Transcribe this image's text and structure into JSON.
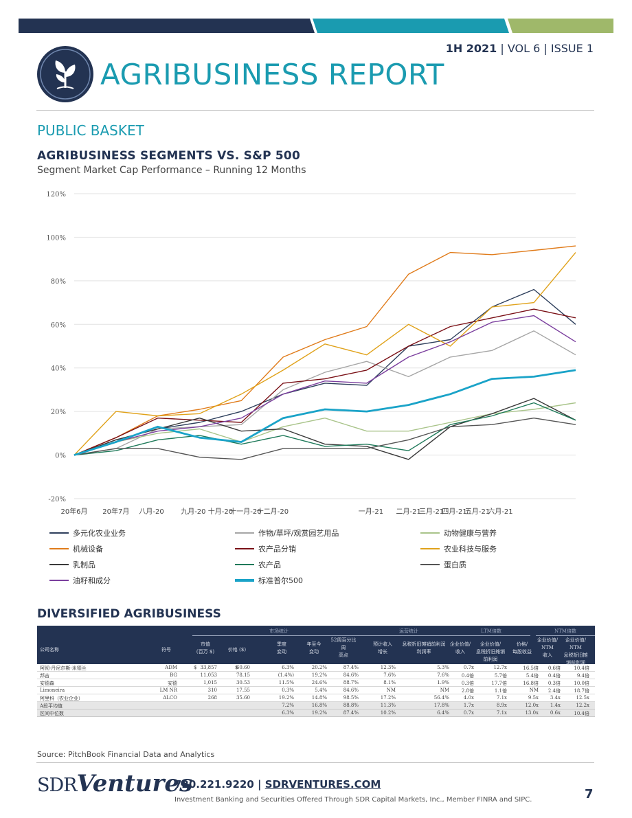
{
  "header": {
    "issue_bold": "1H 2021",
    "issue_rest": " | VOL 6 | ISSUE 1",
    "report_title": "AGRIBUSINESS REPORT"
  },
  "colors": {
    "navy": "#233352",
    "teal": "#1a9bb0",
    "green": "#9fb86a"
  },
  "section_title": "PUBLIC BASKET",
  "chart_data": {
    "type": "line",
    "title": "AGRIBUSINESS SEGMENTS VS. S&P 500",
    "subtitle": "Segment Market Cap Performance – Running 12 Months",
    "ylim": [
      -20,
      120
    ],
    "yticks": [
      "-20%",
      "0%",
      "20%",
      "40%",
      "60%",
      "80%",
      "100%",
      "120%"
    ],
    "ytick_values": [
      -20,
      0,
      20,
      40,
      60,
      80,
      100,
      120
    ],
    "x_labels": [
      "20年6月",
      "20年7月",
      "八月-20",
      "九月-20",
      "十月-20",
      "十一月-20",
      "十二月-20",
      "一月-21",
      "二月-21",
      "三月-21",
      "四月-21",
      "五月-21",
      "六月-21"
    ],
    "x_label_positions": [
      0,
      1,
      1.85,
      2.85,
      3.5,
      4.1,
      4.75,
      7.1,
      8,
      8.55,
      9.1,
      9.65,
      10.2
    ],
    "x": [
      0,
      1,
      2,
      3,
      4,
      5,
      6,
      7,
      8,
      9,
      10,
      11,
      12
    ],
    "grid": true,
    "series": [
      {
        "name": "多元化农业业务",
        "color": "#2e3f5c",
        "width": 1.4,
        "values": [
          0,
          7,
          12,
          15,
          20,
          28,
          33,
          32,
          50,
          53,
          68,
          76,
          60
        ]
      },
      {
        "name": "作物/草坪/观赏园艺用品",
        "color": "#a6a6a6",
        "width": 1.4,
        "values": [
          0,
          3,
          12,
          13,
          14,
          30,
          38,
          43,
          36,
          45,
          48,
          57,
          46
        ]
      },
      {
        "name": "动物健康与营养",
        "color": "#a9c48a",
        "width": 1.4,
        "values": [
          0,
          6,
          10,
          12,
          6,
          13,
          17,
          11,
          11,
          15,
          19,
          21,
          24
        ]
      },
      {
        "name": "机械设备",
        "color": "#e07b1a",
        "width": 1.4,
        "values": [
          0,
          8,
          18,
          21,
          25,
          45,
          53,
          59,
          83,
          93,
          92,
          94,
          96
        ]
      },
      {
        "name": "农产品分销",
        "color": "#7a1016",
        "width": 1.4,
        "values": [
          0,
          8,
          17,
          16,
          15,
          33,
          35,
          39,
          50,
          59,
          63,
          67,
          63
        ]
      },
      {
        "name": "农业科技与服务",
        "color": "#e0a21a",
        "width": 1.4,
        "values": [
          0,
          20,
          18,
          19,
          28,
          39,
          51,
          46,
          60,
          50,
          68,
          70,
          93
        ]
      },
      {
        "name": "乳制品",
        "color": "#3a3a3a",
        "width": 1.4,
        "values": [
          0,
          7,
          12,
          17,
          11,
          12,
          5,
          4,
          -2,
          13,
          19,
          26,
          16
        ]
      },
      {
        "name": "农产品",
        "color": "#1f7a5a",
        "width": 1.4,
        "values": [
          0,
          2,
          7,
          9,
          5,
          9,
          4,
          5,
          2,
          14,
          18,
          24,
          16
        ]
      },
      {
        "name": "蛋白质",
        "color": "#555555",
        "width": 1.4,
        "values": [
          0,
          3,
          3,
          -1,
          -2,
          3,
          3,
          3,
          7,
          13,
          14,
          17,
          14
        ]
      },
      {
        "name": "油籽和成分",
        "color": "#7b3f9e",
        "width": 1.4,
        "values": [
          0,
          6,
          11,
          13,
          17,
          28,
          34,
          33,
          45,
          52,
          61,
          64,
          52
        ]
      },
      {
        "name": "标准普尔500",
        "color": "#1aa3c8",
        "width": 2.8,
        "values": [
          0,
          6,
          13,
          8,
          6,
          17,
          21,
          20,
          23,
          28,
          35,
          36,
          39
        ]
      }
    ]
  },
  "table": {
    "title": "DIVERSIFIED AGRIBUSINESS",
    "groups": [
      "市场统计",
      "运营统计",
      "LTM倍数",
      "NTM倍数"
    ],
    "headers": {
      "company": "公司名称",
      "ticker": "符号",
      "mktcap": "市值\n(百万 $)",
      "price": "价格 ($)",
      "qtr": "季度\n变动",
      "ytd": "年至今\n变动",
      "high52": "52周百分比\n周\n高点",
      "revgrowth": "预计收入\n增长",
      "ebitdamargin": "息税折旧摊销前利润\n利润率",
      "ev_rev": "企业价值/\n收入",
      "ev_ebitda": "企业价值/\n息税折旧摊销前利润",
      "pe": "价格/\n每股收益",
      "ntm_rev": "企业价值/\nNTM\n收入",
      "ntm_ebitda": "企业价值/\nNTM\n息税折旧摊销前利润"
    },
    "rows": [
      {
        "company": "阿彻-丹尼尔斯-米德兰",
        "ticker": "ADM",
        "cur1": "$",
        "mktcap": "33,857",
        "cur2": "$",
        "price": "60.60",
        "qtr": "6.3%",
        "ytd": "20.2%",
        "high52": "87.4%",
        "revgrowth": "12.3%",
        "ebitdamargin": "5.3%",
        "ev_rev": "0.7x",
        "ev_ebitda": "12.7x",
        "pe": "16.5倍",
        "ntm_rev": "0.6倍",
        "ntm_ebitda": "10.4倍"
      },
      {
        "company": "邦吉",
        "ticker": "BG",
        "cur1": "",
        "mktcap": "11,053",
        "cur2": "",
        "price": "78.15",
        "qtr": "(1.4%)",
        "ytd": "19.2%",
        "high52": "84.6%",
        "revgrowth": "7.6%",
        "ebitdamargin": "7.6%",
        "ev_rev": "0.4倍",
        "ev_ebitda": "5.7倍",
        "pe": "5.4倍",
        "ntm_rev": "0.4倍",
        "ntm_ebitda": "9.4倍"
      },
      {
        "company": "安德森",
        "ticker": "安德",
        "cur1": "",
        "mktcap": "1,015",
        "cur2": "",
        "price": "30.53",
        "qtr": "11.5%",
        "ytd": "24.6%",
        "high52": "88.7%",
        "revgrowth": "8.1%",
        "ebitdamargin": "1.9%",
        "ev_rev": "0.3倍",
        "ev_ebitda": "17.7倍",
        "pe": "16.8倍",
        "ntm_rev": "0.3倍",
        "ntm_ebitda": "10.0倍"
      },
      {
        "company": "Limoneira",
        "ticker": "LM NR",
        "cur1": "",
        "mktcap": "310",
        "cur2": "",
        "price": "17.55",
        "qtr": "0.3%",
        "ytd": "5.4%",
        "high52": "84.6%",
        "revgrowth": "NM",
        "ebitdamargin": "NM",
        "ev_rev": "2.8倍",
        "ev_ebitda": "1.1倍",
        "pe": "NM",
        "ntm_rev": "2.4倍",
        "ntm_ebitda": "18.7倍"
      },
      {
        "company": "阿里科（农业企业）",
        "ticker": "ALCO",
        "cur1": "",
        "mktcap": "268",
        "cur2": "",
        "price": "35.60",
        "qtr": "19.2%",
        "ytd": "14.8%",
        "high52": "98.5%",
        "revgrowth": "17.2%",
        "ebitdamargin": "56.4%",
        "ev_rev": "4.0x",
        "ev_ebitda": "7.1x",
        "pe": "9.5x",
        "ntm_rev": "3.4x",
        "ntm_ebitda": "12.5x"
      }
    ],
    "summary": [
      {
        "label": "A段平均值",
        "qtr": "7.2%",
        "ytd": "16.8%",
        "high52": "88.8%",
        "revgrowth": "11.3%",
        "ebitdamargin": "17.8%",
        "ev_rev": "1.7x",
        "ev_ebitda": "8.9x",
        "pe": "12.0x",
        "ntm_rev": "1.4x",
        "ntm_ebitda": "12.2x"
      },
      {
        "label": "区间中位数",
        "qtr": "6.3%",
        "ytd": "19.2%",
        "high52": "87.4%",
        "revgrowth": "10.2%",
        "ebitdamargin": "6.4%",
        "ev_rev": "0.7x",
        "ev_ebitda": "7.1x",
        "pe": "13.0x",
        "ntm_rev": "0.6x",
        "ntm_ebitda": "10.4倍"
      }
    ]
  },
  "source": "Source: PitchBook Financial Data and Analytics",
  "footer": {
    "brand_a": "SDR",
    "brand_b": "Ventures",
    "phone": "720.221.9220",
    "separator": " | ",
    "url": "SDRVENTURES.COM",
    "disclaimer": "Investment Banking and Securities Offered Through SDR Capital Markets, Inc., Member FINRA and SIPC.",
    "page_number": "7"
  }
}
